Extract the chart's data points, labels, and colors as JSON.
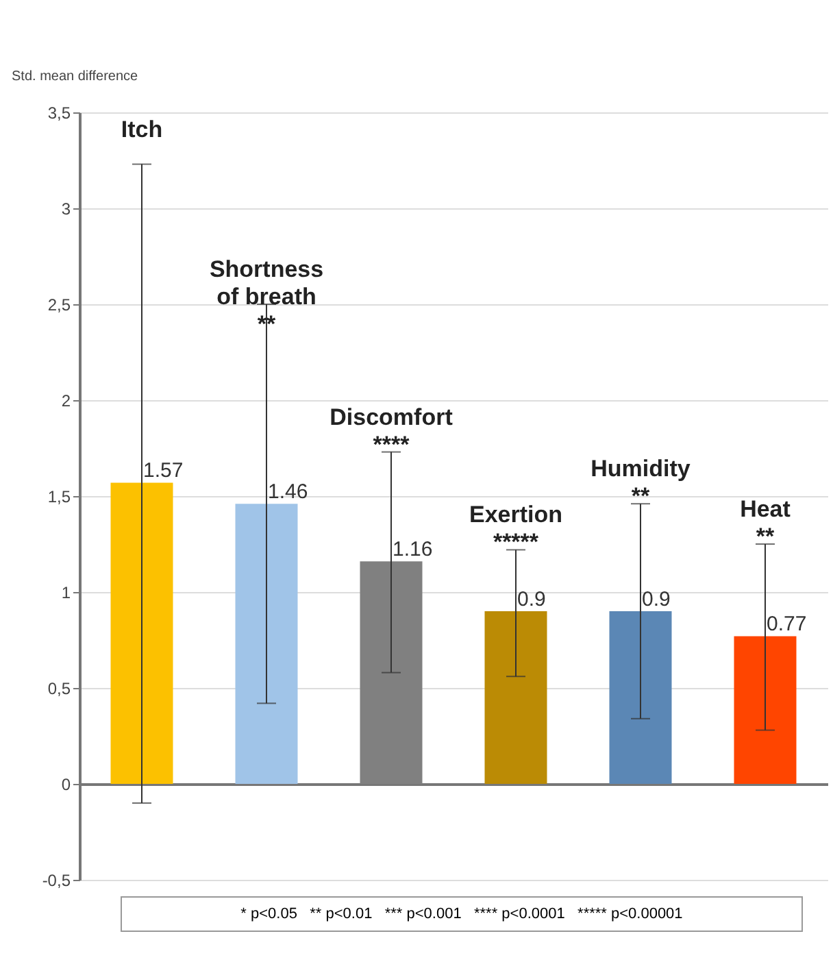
{
  "chart_data": {
    "type": "bar",
    "ylabel": "Std. mean difference",
    "categories": [
      "Itch",
      "Shortness\nof breath\n**",
      "Discomfort\n****",
      "Exertion\n*****",
      "Humidity\n**",
      "Heat\n**"
    ],
    "values": [
      1.57,
      1.46,
      1.16,
      0.9,
      0.9,
      0.77
    ],
    "colors": [
      "#fcc100",
      "#a0c4e8",
      "#808080",
      "#bb8b05",
      "#5b87b5",
      "#ff4500"
    ],
    "errors": [
      [
        -0.1,
        3.23
      ],
      [
        0.42,
        2.5
      ],
      [
        0.58,
        1.73
      ],
      [
        0.56,
        1.22
      ],
      [
        0.34,
        1.46
      ],
      [
        0.28,
        1.25
      ]
    ],
    "data_labels": true,
    "ylim": [
      -0.5,
      3.5
    ],
    "yticks": [
      {
        "value": -0.5,
        "label": "-0,5"
      },
      0,
      {
        "value": 0.5,
        "label": "0,5"
      },
      1,
      {
        "value": 1.5,
        "label": "1,5"
      },
      2,
      {
        "value": 2.5,
        "label": "2,5"
      },
      3,
      {
        "value": 3.5,
        "label": "3,5"
      }
    ],
    "grid": "y",
    "annotations": [
      "* p<0.05   ** p<0.01   *** p<0.001   **** p<0.0001   ***** p<0.00001"
    ]
  }
}
